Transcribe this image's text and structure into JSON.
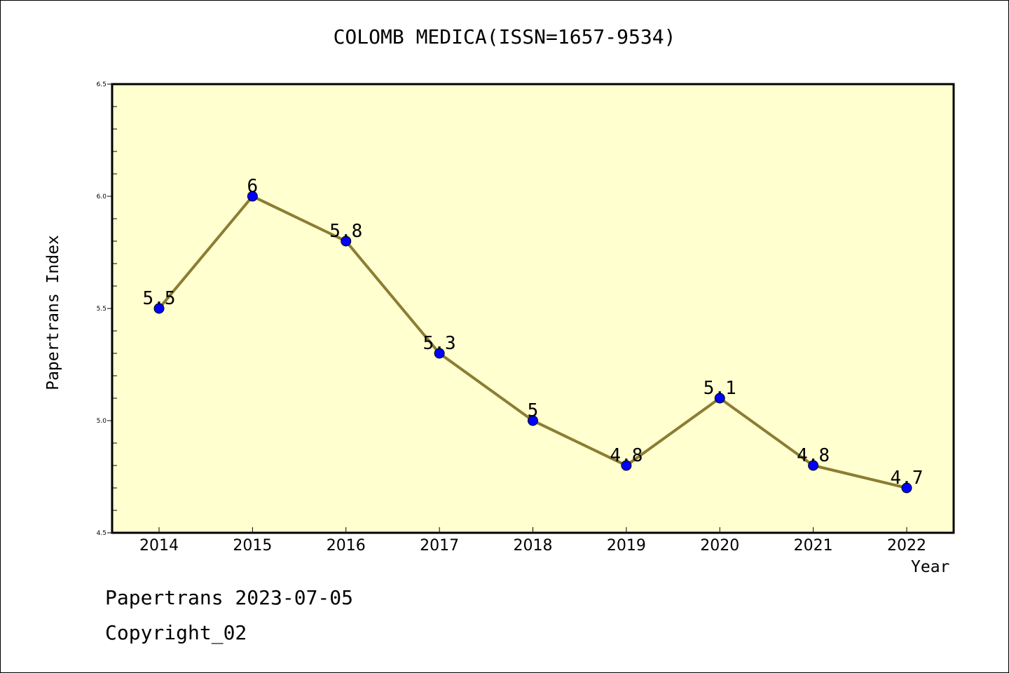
{
  "chart_data": {
    "type": "line",
    "title": "COLOMB MEDICA(ISSN=1657-9534)",
    "xlabel": "Year",
    "ylabel": "Papertrans Index",
    "categories": [
      "2014",
      "2015",
      "2016",
      "2017",
      "2018",
      "2019",
      "2020",
      "2021",
      "2022"
    ],
    "series": [
      {
        "values": [
          5.5,
          6,
          5.8,
          5.3,
          5,
          4.8,
          5.1,
          4.8,
          4.7
        ],
        "data_labels": [
          "5.5",
          "6",
          "5.8",
          "5.3",
          "5",
          "4.8",
          "5.1",
          "4.8",
          "4.7"
        ]
      }
    ],
    "ylim": [
      4.5,
      6.5
    ],
    "yticks": [
      "4.5",
      "5.0",
      "5.5",
      "6.0",
      "6.5"
    ],
    "grid": false,
    "colors": {
      "plot_background": "#ffffd0",
      "line": "#8b7d32",
      "marker": "#0000ff"
    }
  },
  "footer": {
    "line1": "Papertrans 2023-07-05",
    "line2": "Copyright_02"
  }
}
